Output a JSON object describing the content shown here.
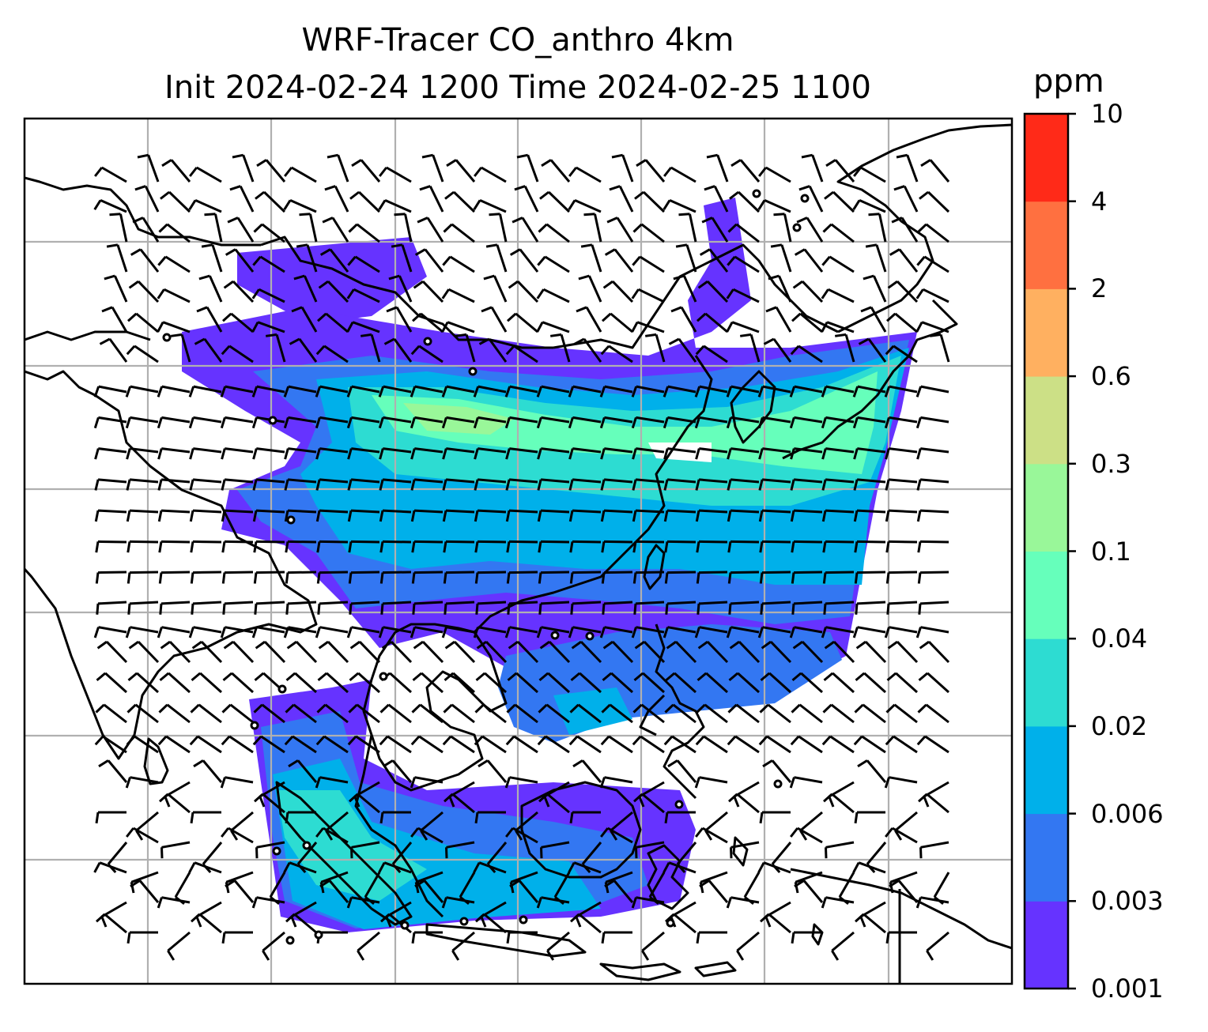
{
  "title_line1": "WRF-Tracer CO_anthro 4km",
  "title_line2": "Init 2024-02-24 1200 Time 2024-02-25 1100",
  "colorbar": {
    "unit": "ppm",
    "levels": [
      "0.001",
      "0.003",
      "0.006",
      "0.02",
      "0.04",
      "0.1",
      "0.3",
      "0.6",
      "2",
      "4",
      "10"
    ],
    "colors": [
      "#6633ff",
      "#3377f2",
      "#00b0ea",
      "#2ddcd2",
      "#66ffbb",
      "#99f799",
      "#cce086",
      "#ffb060",
      "#ff7040",
      "#ff2a18"
    ]
  },
  "map": {
    "gridlines": "on",
    "gridline_color": "#b0b0b0",
    "coastline_color": "#000000",
    "field": "CO_anthro tracer concentration (shaded)",
    "overlay": "wind barbs"
  }
}
